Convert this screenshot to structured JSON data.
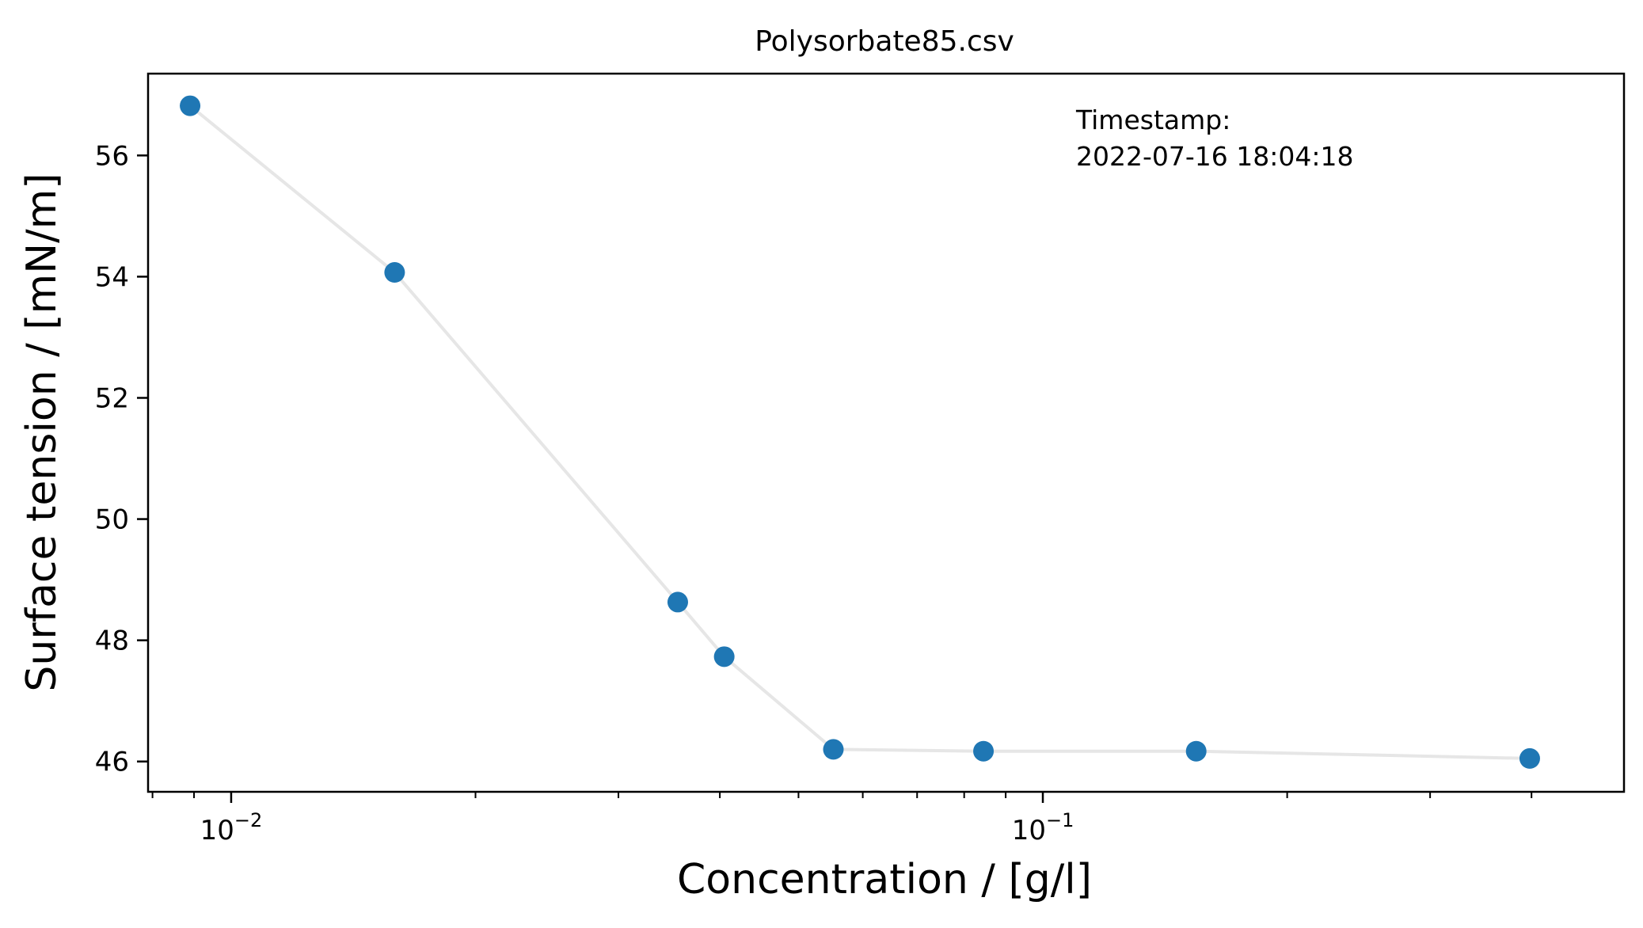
{
  "chart_data": {
    "type": "line",
    "title": "Polysorbate85.csv",
    "xlabel": "Concentration / [g/l]",
    "ylabel": "Surface tension / [mN/m]",
    "x_scale": "log",
    "xlim": [
      0.0079,
      0.52
    ],
    "ylim": [
      45.5,
      57.35
    ],
    "x_major_ticks": [
      {
        "value": 0.01,
        "mantissa": "10",
        "exponent": "−2"
      },
      {
        "value": 0.1,
        "mantissa": "10",
        "exponent": "−1"
      }
    ],
    "x_minor_ticks": [
      0.008,
      0.009,
      0.02,
      0.03,
      0.04,
      0.05,
      0.06,
      0.07,
      0.08,
      0.09,
      0.2,
      0.3,
      0.4
    ],
    "y_ticks": [
      46,
      48,
      50,
      52,
      54,
      56
    ],
    "series": [
      {
        "x": [
          0.0089,
          0.0159,
          0.0355,
          0.0405,
          0.0552,
          0.0845,
          0.1545,
          0.398
        ],
        "y": [
          56.82,
          54.07,
          48.63,
          47.73,
          46.2,
          46.17,
          46.17,
          46.05
        ],
        "line_color": "#e6e6e6",
        "marker_color": "#1f77b4"
      }
    ],
    "annotation": {
      "line1": "Timestamp:",
      "line2": "2022-07-16 18:04:18"
    },
    "grid": false,
    "legend": "none"
  }
}
